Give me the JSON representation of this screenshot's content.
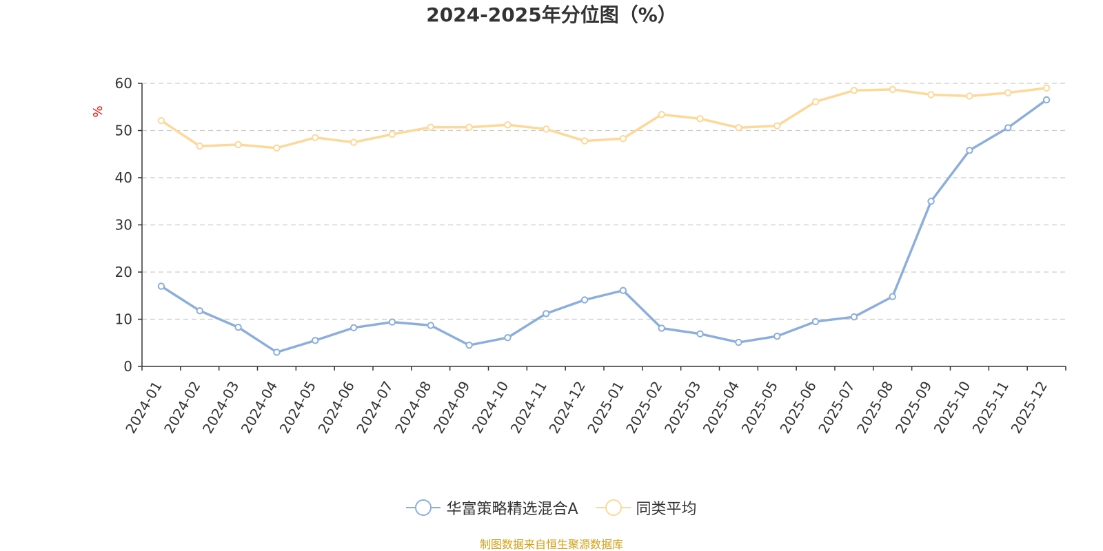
{
  "chart_data": {
    "type": "line",
    "title": "2024-2025年分位图（%）",
    "ylabel": "%",
    "xlabel": "",
    "ylim": [
      0,
      60
    ],
    "yticks": [
      0,
      10,
      20,
      30,
      40,
      50,
      60
    ],
    "grid": true,
    "legend_position": "bottom-center",
    "categories": [
      "2024-01",
      "2024-02",
      "2024-03",
      "2024-04",
      "2024-05",
      "2024-06",
      "2024-07",
      "2024-08",
      "2024-09",
      "2024-10",
      "2024-11",
      "2024-12",
      "2025-01",
      "2025-02",
      "2025-03",
      "2025-04",
      "2025-05",
      "2025-06",
      "2025-07",
      "2025-08",
      "2025-09",
      "2025-10",
      "2025-11",
      "2025-12"
    ],
    "series": [
      {
        "name": "华富策略精选混合A",
        "color": "#8daedb",
        "values": [
          17.0,
          11.8,
          8.3,
          3.0,
          5.5,
          8.2,
          9.4,
          8.7,
          4.5,
          6.1,
          11.2,
          14.1,
          16.1,
          8.1,
          6.9,
          5.1,
          6.4,
          9.5,
          10.5,
          14.8,
          35.0,
          45.8,
          50.6,
          56.5
        ]
      },
      {
        "name": "同类平均",
        "color": "#fcd89a",
        "values": [
          52.1,
          46.7,
          47.0,
          46.3,
          48.5,
          47.5,
          49.2,
          50.7,
          50.7,
          51.2,
          50.3,
          47.8,
          48.3,
          53.4,
          52.5,
          50.6,
          51.0,
          56.1,
          58.5,
          58.7,
          57.6,
          57.3,
          58.0,
          59.0
        ]
      }
    ],
    "source_note": "制图数据来自恒生聚源数据库"
  },
  "colors": {
    "axis": "#333333",
    "grid": "#cccccc",
    "ylabel": "#ff0000",
    "source": "#d4a017"
  }
}
